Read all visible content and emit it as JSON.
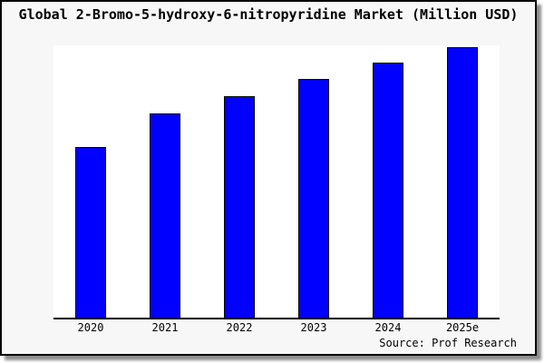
{
  "title": "Global 2-Bromo-5-hydroxy-6-nitropyridine Market (Million USD)",
  "source": "Source: Prof Research",
  "colors": {
    "bar_fill": "#0000ff",
    "bar_edge": "#000000",
    "canvas_bg": "#f7f7f7",
    "plot_bg": "#ffffff",
    "axis": "#000000",
    "text": "#000000"
  },
  "chart_data": {
    "type": "bar",
    "title": "Global 2-Bromo-5-hydroxy-6-nitropyridine Market (Million USD)",
    "categories": [
      "2020",
      "2021",
      "2022",
      "2023",
      "2024",
      "2025e"
    ],
    "values": [
      62.9,
      75.3,
      81.7,
      88.0,
      94.0,
      100.0
    ],
    "value_note": "no y-axis labels shown; values estimated from bar heights relative to 2025e = 100",
    "xlabel": "",
    "ylabel": "",
    "ylim": [
      0,
      100.5
    ],
    "grid": false,
    "legend": null,
    "annotation": "Source: Prof Research"
  }
}
